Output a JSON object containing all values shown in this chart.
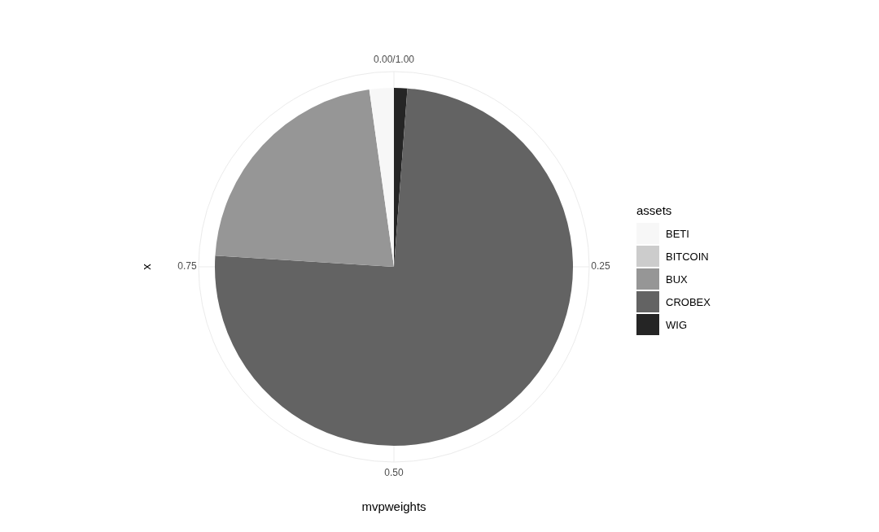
{
  "chart_data": {
    "type": "pie",
    "xlabel": "mvpweights",
    "ylabel": "x",
    "legend_title": "assets",
    "legend": "right",
    "grid": true,
    "categories": [
      "BETI",
      "BITCOIN",
      "BUX",
      "CROBEX",
      "WIG"
    ],
    "values": [
      0.022,
      0,
      0.218,
      0.748,
      0.012
    ],
    "colors": [
      "#f7f7f7",
      "#cccccc",
      "#969696",
      "#636363",
      "#252525"
    ],
    "annotations": [
      "0.00/1.00",
      "0.25",
      "0.50",
      "0.75"
    ]
  }
}
